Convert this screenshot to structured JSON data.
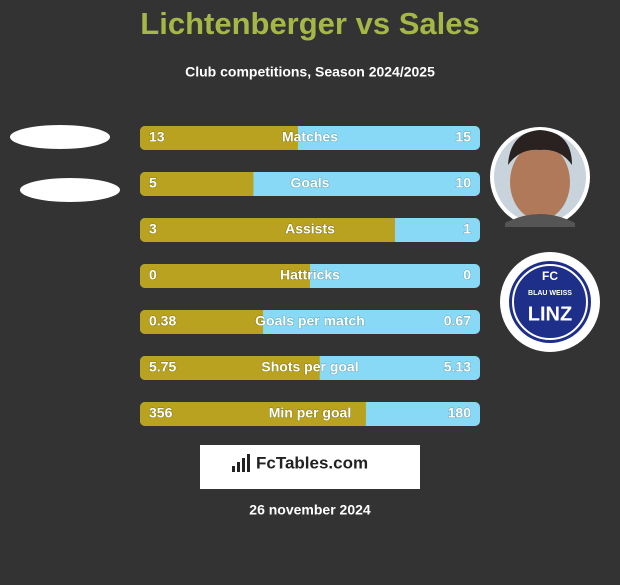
{
  "header": {
    "title": "Lichtenberger vs Sales",
    "subtitle": "Club competitions, Season 2024/2025"
  },
  "rows": [
    {
      "label": "Matches",
      "left": 13,
      "right": 15
    },
    {
      "label": "Goals",
      "left": 5,
      "right": 10
    },
    {
      "label": "Assists",
      "left": 3,
      "right": 1
    },
    {
      "label": "Hattricks",
      "left": 0,
      "right": 0
    },
    {
      "label": "Goals per match",
      "left": 0.38,
      "right": 0.67
    },
    {
      "label": "Shots per goal",
      "left": 5.75,
      "right": 5.13
    },
    {
      "label": "Min per goal",
      "left": 356,
      "right": 180
    }
  ],
  "logo": {
    "top": "FC",
    "middle": "BLAU WEISS",
    "bottom": "LINZ"
  },
  "brand": "FcTables.com",
  "date": "26 november 2024"
}
